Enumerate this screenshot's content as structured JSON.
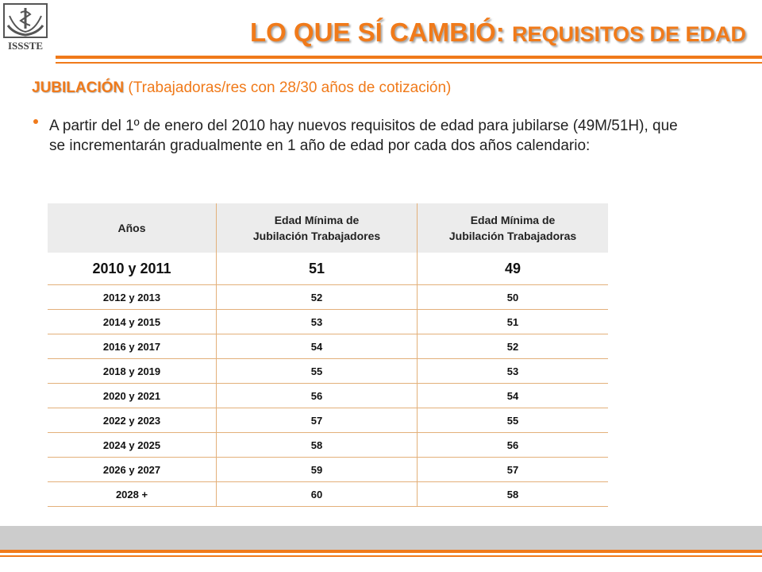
{
  "header": {
    "logo_text": "ISSSTE",
    "title_big": "LO QUE SÍ CAMBIÓ: ",
    "title_small": "REQUISITOS DE EDAD"
  },
  "subtitle": {
    "label": "JUBILACIÓN",
    "detail": " (Trabajadoras/res con 28/30 años de cotización)"
  },
  "bullet": {
    "text": "A partir del 1º de enero del 2010 hay nuevos requisitos de edad para jubilarse (49M/51H), que se incrementarán gradualmente en 1 año de edad por cada dos años calendario:"
  },
  "table": {
    "headers": {
      "years": "Años",
      "men_line1": "Edad Mínima de",
      "men_line2": "Jubilación Trabajadores",
      "women_line1": "Edad Mínima de",
      "women_line2": "Jubilación Trabajadoras"
    },
    "rows": [
      {
        "years": "2010 y 2011",
        "men": "51",
        "women": "49"
      },
      {
        "years": "2012  y  2013",
        "men": "52",
        "women": "50"
      },
      {
        "years": "2014  y  2015",
        "men": "53",
        "women": "51"
      },
      {
        "years": "2016  y  2017",
        "men": "54",
        "women": "52"
      },
      {
        "years": "2018  y  2019",
        "men": "55",
        "women": "53"
      },
      {
        "years": "2020  y  2021",
        "men": "56",
        "women": "54"
      },
      {
        "years": "2022  y  2023",
        "men": "57",
        "women": "55"
      },
      {
        "years": "2024  y  2025",
        "men": "58",
        "women": "56"
      },
      {
        "years": "2026  y  2027",
        "men": "59",
        "women": "57"
      },
      {
        "years": "2028  +",
        "men": "60",
        "women": "58"
      }
    ]
  },
  "colors": {
    "accent": "#f07a1a",
    "table_border": "#e3b07a",
    "header_bg": "#ececec",
    "footer_band": "#cccccc"
  }
}
